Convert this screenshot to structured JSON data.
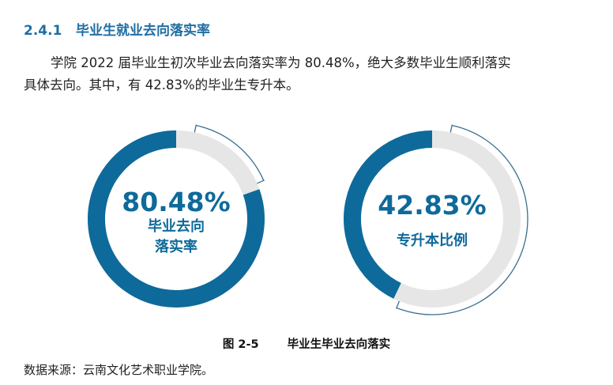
{
  "section": {
    "number": "2.4.1",
    "title": "毕业生就业去向落实率"
  },
  "paragraph": {
    "line1": "学院 2022 届毕业生初次毕业去向落实率为 80.48%，绝大多数毕业生顺利落实",
    "line2": "具体去向。其中，有 42.83%的毕业生专升本。"
  },
  "chart_data": [
    {
      "type": "pie",
      "value_label": "80.48%",
      "value": 80.48,
      "label_line1": "毕业去向",
      "label_line2": "落实率"
    },
    {
      "type": "pie",
      "value_label": "42.83%",
      "value": 42.83,
      "label_line1": "专升本比例",
      "label_line2": ""
    }
  ],
  "colors": {
    "accent": "#0e6a9a",
    "track": "#e6e6e6",
    "outline": "#3a6f8f"
  },
  "figure": {
    "number": "图 2-5",
    "title": "毕业生毕业去向落实"
  },
  "source": "数据来源：云南文化艺术职业学院。"
}
